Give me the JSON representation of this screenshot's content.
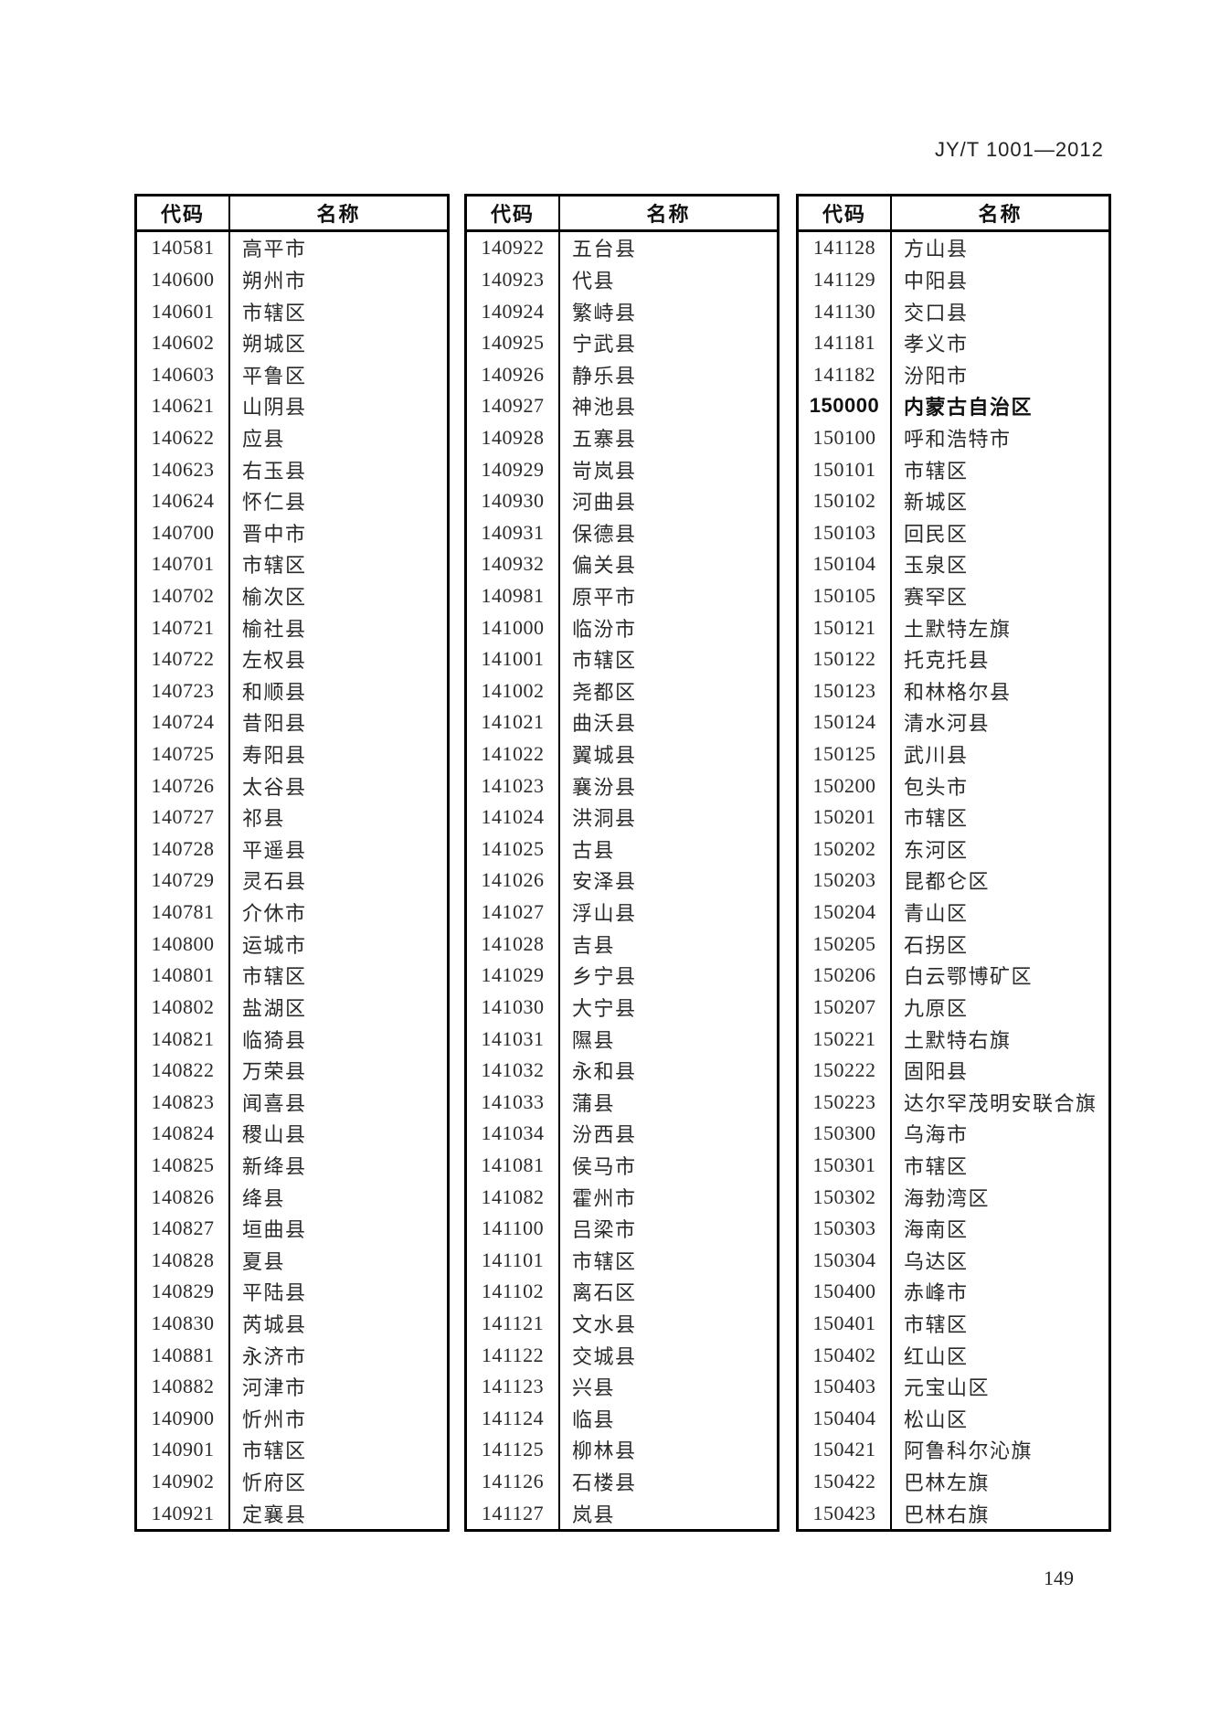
{
  "page": {
    "header_label": "JY/T 1001—2012",
    "page_number": "149"
  },
  "tables": [
    {
      "col_headers": [
        "代码",
        "名称"
      ],
      "rows": [
        {
          "code": "140581",
          "name": "高平市"
        },
        {
          "code": "140600",
          "name": "朔州市"
        },
        {
          "code": "140601",
          "name": "市辖区"
        },
        {
          "code": "140602",
          "name": "朔城区"
        },
        {
          "code": "140603",
          "name": "平鲁区"
        },
        {
          "code": "140621",
          "name": "山阴县"
        },
        {
          "code": "140622",
          "name": "应县"
        },
        {
          "code": "140623",
          "name": "右玉县"
        },
        {
          "code": "140624",
          "name": "怀仁县"
        },
        {
          "code": "140700",
          "name": "晋中市"
        },
        {
          "code": "140701",
          "name": "市辖区"
        },
        {
          "code": "140702",
          "name": "榆次区"
        },
        {
          "code": "140721",
          "name": "榆社县"
        },
        {
          "code": "140722",
          "name": "左权县"
        },
        {
          "code": "140723",
          "name": "和顺县"
        },
        {
          "code": "140724",
          "name": "昔阳县"
        },
        {
          "code": "140725",
          "name": "寿阳县"
        },
        {
          "code": "140726",
          "name": "太谷县"
        },
        {
          "code": "140727",
          "name": "祁县"
        },
        {
          "code": "140728",
          "name": "平遥县"
        },
        {
          "code": "140729",
          "name": "灵石县"
        },
        {
          "code": "140781",
          "name": "介休市"
        },
        {
          "code": "140800",
          "name": "运城市"
        },
        {
          "code": "140801",
          "name": "市辖区"
        },
        {
          "code": "140802",
          "name": "盐湖区"
        },
        {
          "code": "140821",
          "name": "临猗县"
        },
        {
          "code": "140822",
          "name": "万荣县"
        },
        {
          "code": "140823",
          "name": "闻喜县"
        },
        {
          "code": "140824",
          "name": "稷山县"
        },
        {
          "code": "140825",
          "name": "新绛县"
        },
        {
          "code": "140826",
          "name": "绛县"
        },
        {
          "code": "140827",
          "name": "垣曲县"
        },
        {
          "code": "140828",
          "name": "夏县"
        },
        {
          "code": "140829",
          "name": "平陆县"
        },
        {
          "code": "140830",
          "name": "芮城县"
        },
        {
          "code": "140881",
          "name": "永济市"
        },
        {
          "code": "140882",
          "name": "河津市"
        },
        {
          "code": "140900",
          "name": "忻州市"
        },
        {
          "code": "140901",
          "name": "市辖区"
        },
        {
          "code": "140902",
          "name": "忻府区"
        },
        {
          "code": "140921",
          "name": "定襄县"
        }
      ]
    },
    {
      "col_headers": [
        "代码",
        "名称"
      ],
      "rows": [
        {
          "code": "140922",
          "name": "五台县"
        },
        {
          "code": "140923",
          "name": "代县"
        },
        {
          "code": "140924",
          "name": "繁峙县"
        },
        {
          "code": "140925",
          "name": "宁武县"
        },
        {
          "code": "140926",
          "name": "静乐县"
        },
        {
          "code": "140927",
          "name": "神池县"
        },
        {
          "code": "140928",
          "name": "五寨县"
        },
        {
          "code": "140929",
          "name": "岢岚县"
        },
        {
          "code": "140930",
          "name": "河曲县"
        },
        {
          "code": "140931",
          "name": "保德县"
        },
        {
          "code": "140932",
          "name": "偏关县"
        },
        {
          "code": "140981",
          "name": "原平市"
        },
        {
          "code": "141000",
          "name": "临汾市"
        },
        {
          "code": "141001",
          "name": "市辖区"
        },
        {
          "code": "141002",
          "name": "尧都区"
        },
        {
          "code": "141021",
          "name": "曲沃县"
        },
        {
          "code": "141022",
          "name": "翼城县"
        },
        {
          "code": "141023",
          "name": "襄汾县"
        },
        {
          "code": "141024",
          "name": "洪洞县"
        },
        {
          "code": "141025",
          "name": "古县"
        },
        {
          "code": "141026",
          "name": "安泽县"
        },
        {
          "code": "141027",
          "name": "浮山县"
        },
        {
          "code": "141028",
          "name": "吉县"
        },
        {
          "code": "141029",
          "name": "乡宁县"
        },
        {
          "code": "141030",
          "name": "大宁县"
        },
        {
          "code": "141031",
          "name": "隰县"
        },
        {
          "code": "141032",
          "name": "永和县"
        },
        {
          "code": "141033",
          "name": "蒲县"
        },
        {
          "code": "141034",
          "name": "汾西县"
        },
        {
          "code": "141081",
          "name": "侯马市"
        },
        {
          "code": "141082",
          "name": "霍州市"
        },
        {
          "code": "141100",
          "name": "吕梁市"
        },
        {
          "code": "141101",
          "name": "市辖区"
        },
        {
          "code": "141102",
          "name": "离石区"
        },
        {
          "code": "141121",
          "name": "文水县"
        },
        {
          "code": "141122",
          "name": "交城县"
        },
        {
          "code": "141123",
          "name": "兴县"
        },
        {
          "code": "141124",
          "name": "临县"
        },
        {
          "code": "141125",
          "name": "柳林县"
        },
        {
          "code": "141126",
          "name": "石楼县"
        },
        {
          "code": "141127",
          "name": "岚县"
        }
      ]
    },
    {
      "col_headers": [
        "代码",
        "名称"
      ],
      "rows": [
        {
          "code": "141128",
          "name": "方山县"
        },
        {
          "code": "141129",
          "name": "中阳县"
        },
        {
          "code": "141130",
          "name": "交口县"
        },
        {
          "code": "141181",
          "name": "孝义市"
        },
        {
          "code": "141182",
          "name": "汾阳市"
        },
        {
          "code": "150000",
          "name": "内蒙古自治区",
          "bold": true
        },
        {
          "code": "150100",
          "name": "呼和浩特市"
        },
        {
          "code": "150101",
          "name": "市辖区"
        },
        {
          "code": "150102",
          "name": "新城区"
        },
        {
          "code": "150103",
          "name": "回民区"
        },
        {
          "code": "150104",
          "name": "玉泉区"
        },
        {
          "code": "150105",
          "name": "赛罕区"
        },
        {
          "code": "150121",
          "name": "土默特左旗"
        },
        {
          "code": "150122",
          "name": "托克托县"
        },
        {
          "code": "150123",
          "name": "和林格尔县"
        },
        {
          "code": "150124",
          "name": "清水河县"
        },
        {
          "code": "150125",
          "name": "武川县"
        },
        {
          "code": "150200",
          "name": "包头市"
        },
        {
          "code": "150201",
          "name": "市辖区"
        },
        {
          "code": "150202",
          "name": "东河区"
        },
        {
          "code": "150203",
          "name": "昆都仑区"
        },
        {
          "code": "150204",
          "name": "青山区"
        },
        {
          "code": "150205",
          "name": "石拐区"
        },
        {
          "code": "150206",
          "name": "白云鄂博矿区"
        },
        {
          "code": "150207",
          "name": "九原区"
        },
        {
          "code": "150221",
          "name": "土默特右旗"
        },
        {
          "code": "150222",
          "name": "固阳县"
        },
        {
          "code": "150223",
          "name": "达尔罕茂明安联合旗"
        },
        {
          "code": "150300",
          "name": "乌海市"
        },
        {
          "code": "150301",
          "name": "市辖区"
        },
        {
          "code": "150302",
          "name": "海勃湾区"
        },
        {
          "code": "150303",
          "name": "海南区"
        },
        {
          "code": "150304",
          "name": "乌达区"
        },
        {
          "code": "150400",
          "name": "赤峰市"
        },
        {
          "code": "150401",
          "name": "市辖区"
        },
        {
          "code": "150402",
          "name": "红山区"
        },
        {
          "code": "150403",
          "name": "元宝山区"
        },
        {
          "code": "150404",
          "name": "松山区"
        },
        {
          "code": "150421",
          "name": "阿鲁科尔沁旗"
        },
        {
          "code": "150422",
          "name": "巴林左旗"
        },
        {
          "code": "150423",
          "name": "巴林右旗"
        }
      ]
    }
  ]
}
